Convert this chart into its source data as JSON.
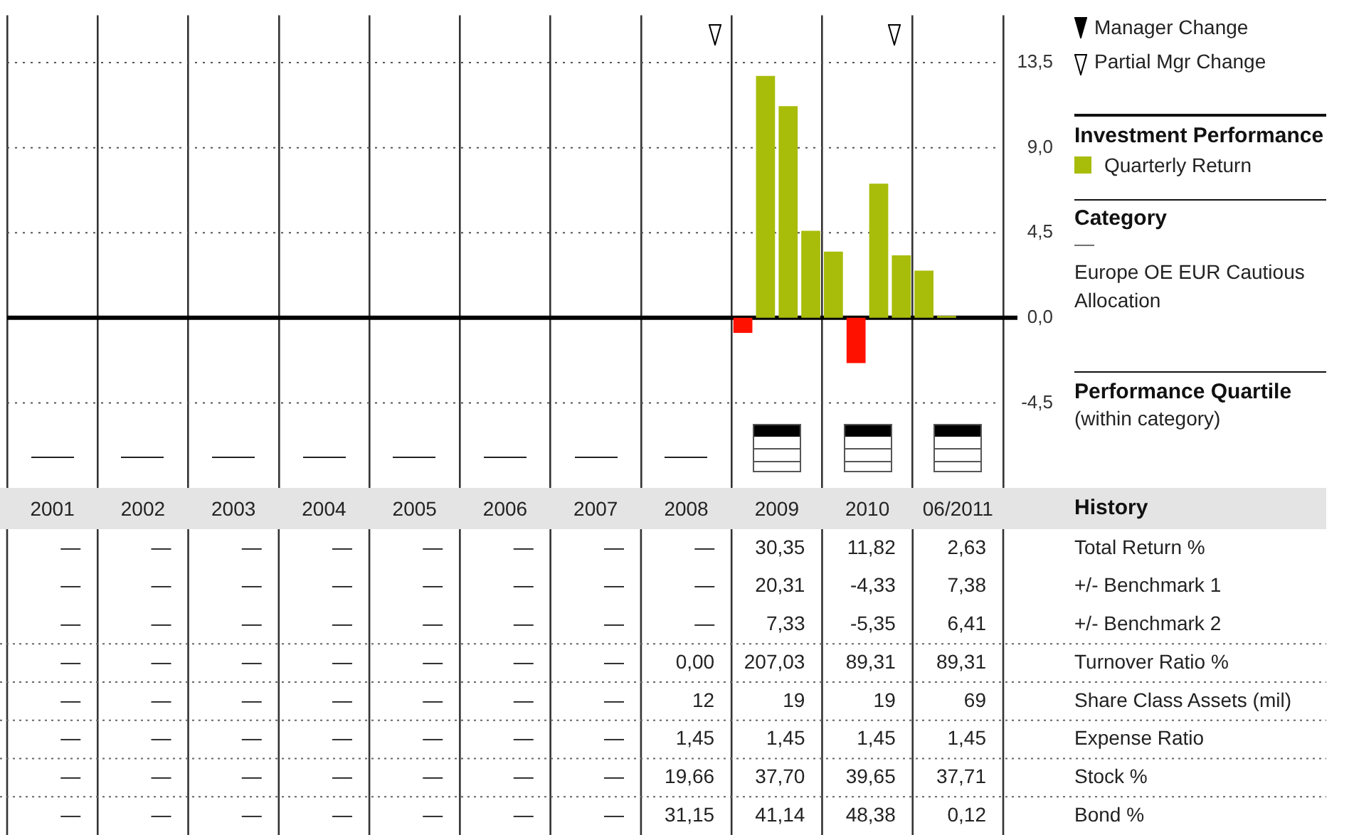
{
  "chart_data": [
    {
      "type": "bar",
      "categories": [
        "2001",
        "2002",
        "2003",
        "2004",
        "2005",
        "2006",
        "2007",
        "2008",
        "2009",
        "2010",
        "06/2011"
      ],
      "series": [
        {
          "name": "Quarterly Return",
          "color": "#a8bc0a",
          "colors": [
            "#a8bc0a",
            "#a8bc0a",
            "#a8bc0a",
            "#a8bc0a",
            "#a8bc0a",
            "#a8bc0a",
            "#a8bc0a",
            "#a8bc0a",
            "#ff1100",
            "#a8bc0a",
            "#a8bc0a"
          ],
          "values": [
            null,
            null,
            null,
            null,
            null,
            null,
            null,
            null,
            -0.8,
            3.5,
            2.5
          ]
        },
        {
          "colors": [
            "#a8bc0a",
            "#a8bc0a",
            "#a8bc0a",
            "#a8bc0a",
            "#a8bc0a",
            "#a8bc0a",
            "#a8bc0a",
            "#a8bc0a",
            "#a8bc0a",
            "#ff1100",
            "#a8bc0a"
          ],
          "values": [
            null,
            null,
            null,
            null,
            null,
            null,
            null,
            null,
            12.8,
            -2.4,
            0.1
          ]
        },
        {
          "colors": [
            "#a8bc0a",
            "#a8bc0a",
            "#a8bc0a",
            "#a8bc0a",
            "#a8bc0a",
            "#a8bc0a",
            "#a8bc0a",
            "#a8bc0a",
            "#a8bc0a",
            "#a8bc0a",
            "#a8bc0a"
          ],
          "values": [
            null,
            null,
            null,
            null,
            null,
            null,
            null,
            null,
            11.2,
            7.1,
            null
          ]
        },
        {
          "colors": [
            "#a8bc0a",
            "#a8bc0a",
            "#a8bc0a",
            "#a8bc0a",
            "#a8bc0a",
            "#a8bc0a",
            "#a8bc0a",
            "#a8bc0a",
            "#a8bc0a",
            "#a8bc0a",
            "#a8bc0a"
          ],
          "values": [
            null,
            null,
            null,
            null,
            null,
            null,
            null,
            null,
            4.6,
            3.3,
            null
          ]
        }
      ],
      "ylim": [
        -9,
        16
      ],
      "yticks": [
        {
          "value": -4.5,
          "label": "-4,5"
        },
        {
          "value": 0,
          "label": "0,0"
        },
        {
          "value": 4.5,
          "label": "4,5"
        },
        {
          "value": 9,
          "label": "9,0"
        },
        {
          "value": 13.5,
          "label": "13,5"
        }
      ],
      "grid": true,
      "legend": "right",
      "legend_title": "Investment Performance",
      "annotations": [
        "Manager Change",
        "Partial Mgr Change",
        "Category",
        "—",
        "Europe OE EUR Cautious Allocation",
        "Performance Quartile",
        "(within category)"
      ]
    },
    {
      "type": "heatmap",
      "title": "History",
      "tick_labels": "y",
      "categories": [
        null,
        null,
        null,
        null,
        null,
        null,
        null,
        null,
        null,
        null,
        null
      ],
      "y_categories": [
        "Total Return %",
        "+/- Benchmark 1",
        "+/- Benchmark 2",
        "Turnover Ratio %",
        "Share Class Assets (mil)",
        "Expense Ratio",
        "Stock %",
        "Bond %"
      ],
      "cells": [
        [
          null,
          null,
          null,
          null,
          null,
          null,
          null,
          null,
          30.35,
          11.82,
          2.63
        ],
        [
          null,
          null,
          null,
          null,
          null,
          null,
          null,
          null,
          20.31,
          -4.33,
          7.38
        ],
        [
          null,
          null,
          null,
          null,
          null,
          null,
          null,
          null,
          7.33,
          -5.35,
          6.41
        ],
        [
          null,
          null,
          null,
          null,
          null,
          null,
          null,
          0.0,
          207.03,
          89.31,
          89.31
        ],
        [
          null,
          null,
          null,
          null,
          null,
          null,
          null,
          12,
          19,
          19,
          69
        ],
        [
          null,
          null,
          null,
          null,
          null,
          null,
          null,
          1.45,
          1.45,
          1.45,
          1.45
        ],
        [
          null,
          null,
          null,
          null,
          null,
          null,
          null,
          19.66,
          37.7,
          39.65,
          37.71
        ],
        [
          null,
          null,
          null,
          null,
          null,
          null,
          null,
          31.15,
          41.14,
          48.38,
          0.12
        ]
      ],
      "cell_labels": [
        [
          "—",
          "—",
          "—",
          "—",
          "—",
          "—",
          "—",
          "—",
          "30,35",
          "11,82",
          "2,63"
        ],
        [
          "—",
          "—",
          "—",
          "—",
          "—",
          "—",
          "—",
          "—",
          "20,31",
          "-4,33",
          "7,38"
        ],
        [
          "—",
          "—",
          "—",
          "—",
          "—",
          "—",
          "—",
          "—",
          "7,33",
          "-5,35",
          "6,41"
        ],
        [
          "—",
          "—",
          "—",
          "—",
          "—",
          "—",
          "—",
          "0,00",
          "207,03",
          "89,31",
          "89,31"
        ],
        [
          "—",
          "—",
          "—",
          "—",
          "—",
          "—",
          "—",
          "12",
          "19",
          "19",
          "69"
        ],
        [
          "—",
          "—",
          "—",
          "—",
          "—",
          "—",
          "—",
          "1,45",
          "1,45",
          "1,45",
          "1,45"
        ],
        [
          "—",
          "—",
          "—",
          "—",
          "—",
          "—",
          "—",
          "19,66",
          "37,70",
          "39,65",
          "37,71"
        ],
        [
          "—",
          "—",
          "—",
          "—",
          "—",
          "—",
          "—",
          "31,15",
          "41,14",
          "48,38",
          "0,12"
        ]
      ],
      "grid": "x"
    }
  ]
}
